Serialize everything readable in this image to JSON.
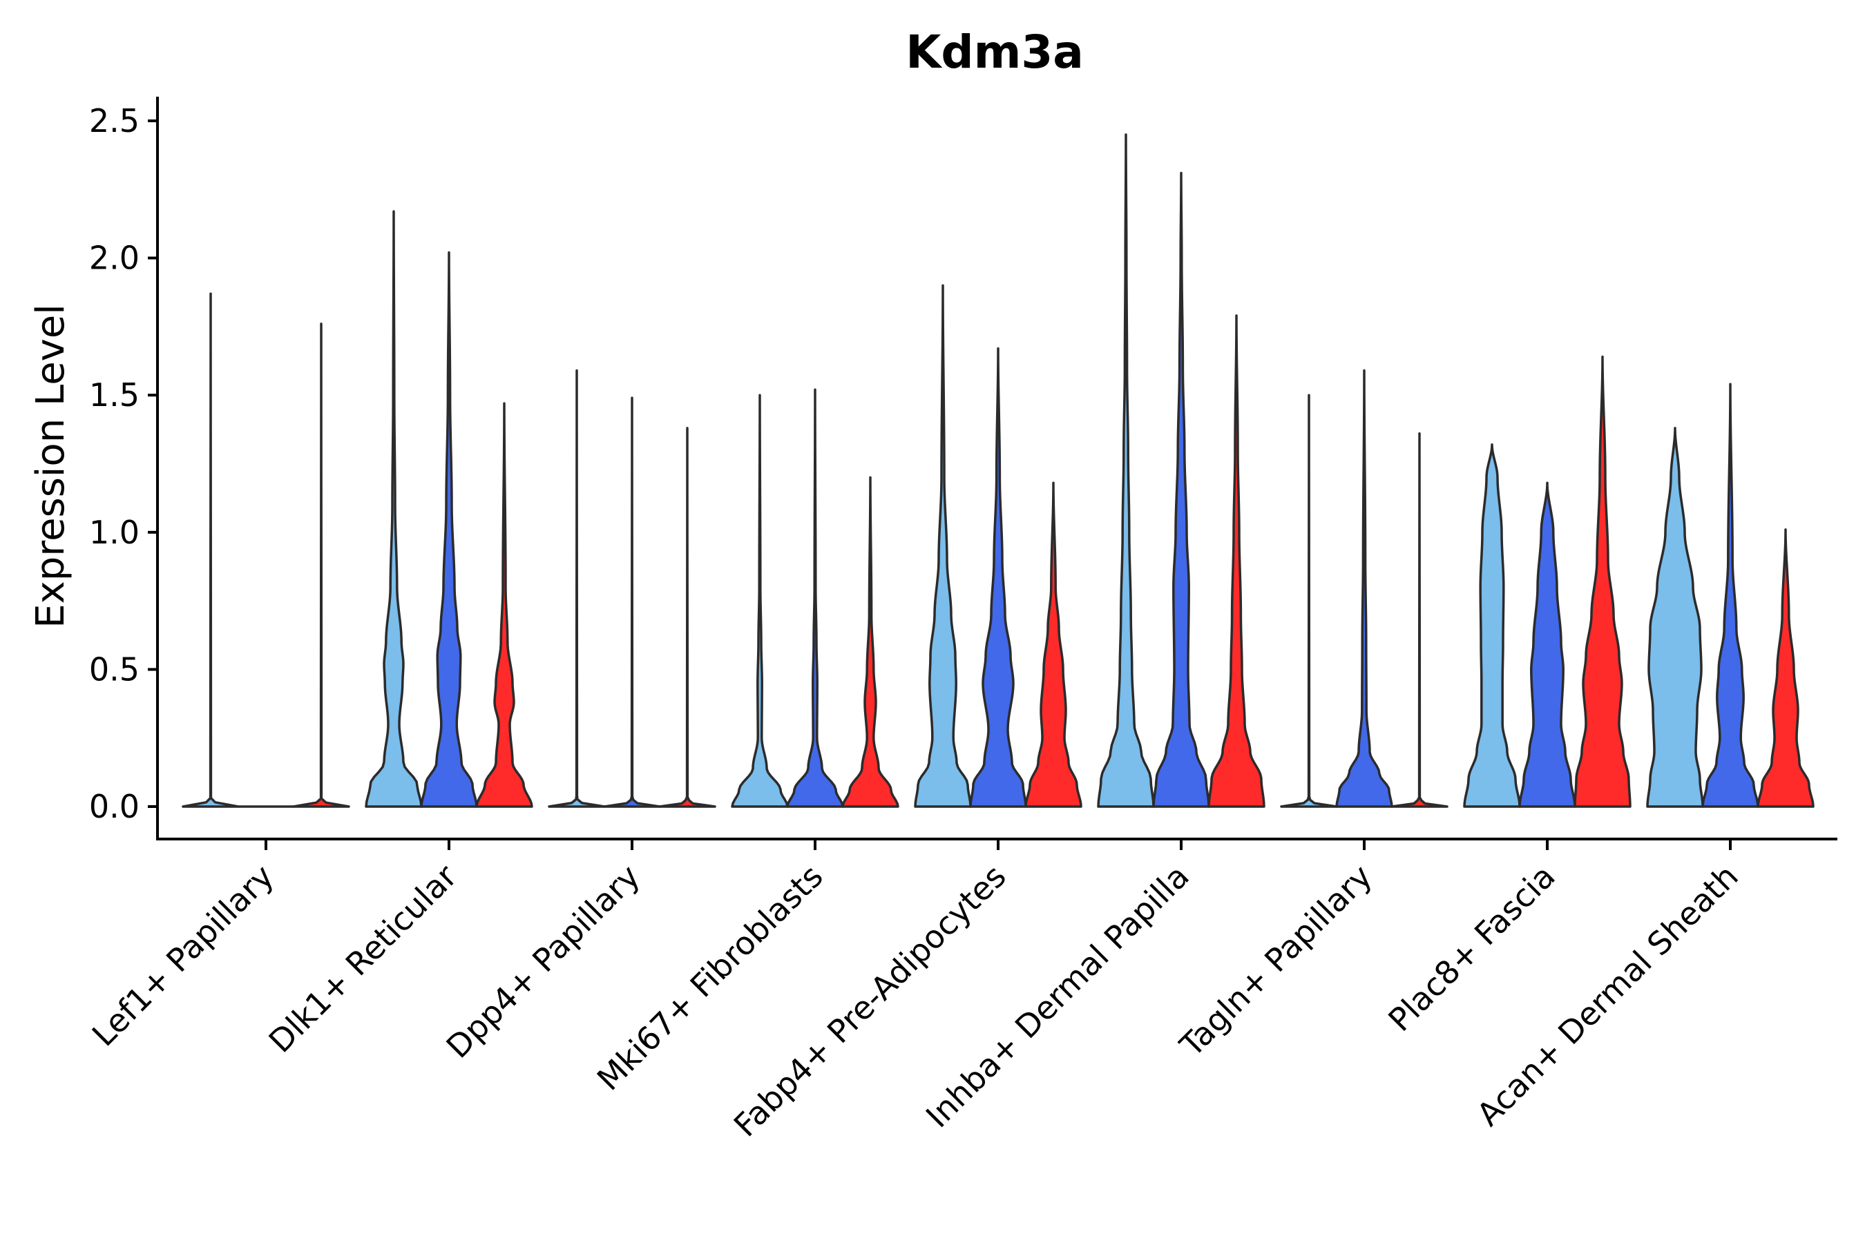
{
  "chart_data": {
    "type": "violin",
    "title": "Kdm3a",
    "xlabel": "",
    "ylabel": "Expression Level",
    "ylim": [
      -0.12,
      2.58
    ],
    "yticks": [
      "0.0",
      "0.5",
      "1.0",
      "1.5",
      "2.0",
      "2.5"
    ],
    "ytick_values": [
      0,
      0.5,
      1.0,
      1.5,
      2.0,
      2.5
    ],
    "grid": false,
    "legend": "none",
    "series_colors": [
      "#7BBDEB",
      "#4169E9",
      "#FF2A2A"
    ],
    "categories": [
      "Lef1+ Papillary",
      "Dlk1+ Reticular",
      "Dpp4+ Papillary",
      "Mki67+ Fibroblasts",
      "Fabp4+ Pre-Adipocytes",
      "Inhba+ Dermal Papilla",
      "Tagln+ Papillary",
      "Plac8+ Fascia",
      "Acan+ Dermal Sheath"
    ],
    "violins": [
      [
        {
          "max": 1.87,
          "profile": [
            [
              0,
              1.0
            ],
            [
              0.01,
              0.2
            ],
            [
              0.03,
              0.01
            ],
            [
              1.87,
              0.0
            ]
          ]
        },
        {
          "max": 0,
          "profile": [
            [
              0,
              0.0
            ]
          ]
        },
        {
          "max": 1.76,
          "profile": [
            [
              0,
              1.0
            ],
            [
              0.01,
              0.2
            ],
            [
              0.03,
              0.01
            ],
            [
              1.76,
              0.0
            ]
          ]
        }
      ],
      [
        {
          "max": 2.17,
          "profile": [
            [
              0,
              1.0
            ],
            [
              0.08,
              0.85
            ],
            [
              0.16,
              0.35
            ],
            [
              0.3,
              0.2
            ],
            [
              0.45,
              0.32
            ],
            [
              0.52,
              0.35
            ],
            [
              0.6,
              0.28
            ],
            [
              0.8,
              0.12
            ],
            [
              1.1,
              0.05
            ],
            [
              1.5,
              0.02
            ],
            [
              2.17,
              0.0
            ]
          ]
        },
        {
          "max": 2.02,
          "profile": [
            [
              0,
              1.0
            ],
            [
              0.08,
              0.85
            ],
            [
              0.16,
              0.45
            ],
            [
              0.3,
              0.28
            ],
            [
              0.45,
              0.4
            ],
            [
              0.55,
              0.42
            ],
            [
              0.65,
              0.3
            ],
            [
              0.8,
              0.2
            ],
            [
              1.1,
              0.1
            ],
            [
              1.5,
              0.04
            ],
            [
              2.02,
              0.0
            ]
          ]
        },
        {
          "max": 1.47,
          "profile": [
            [
              0,
              1.0
            ],
            [
              0.08,
              0.7
            ],
            [
              0.16,
              0.3
            ],
            [
              0.3,
              0.2
            ],
            [
              0.38,
              0.35
            ],
            [
              0.45,
              0.3
            ],
            [
              0.6,
              0.12
            ],
            [
              0.8,
              0.05
            ],
            [
              1.47,
              0.0
            ]
          ]
        }
      ],
      [
        {
          "max": 1.59,
          "profile": [
            [
              0,
              1.0
            ],
            [
              0.01,
              0.2
            ],
            [
              0.03,
              0.01
            ],
            [
              1.59,
              0.0
            ]
          ]
        },
        {
          "max": 1.49,
          "profile": [
            [
              0,
              1.0
            ],
            [
              0.01,
              0.2
            ],
            [
              0.03,
              0.01
            ],
            [
              1.49,
              0.0
            ]
          ]
        },
        {
          "max": 1.38,
          "profile": [
            [
              0,
              1.0
            ],
            [
              0.01,
              0.2
            ],
            [
              0.03,
              0.01
            ],
            [
              1.38,
              0.0
            ]
          ]
        }
      ],
      [
        {
          "max": 1.5,
          "profile": [
            [
              0,
              1.0
            ],
            [
              0.06,
              0.75
            ],
            [
              0.14,
              0.25
            ],
            [
              0.25,
              0.07
            ],
            [
              0.45,
              0.08
            ],
            [
              0.6,
              0.05
            ],
            [
              0.8,
              0.02
            ],
            [
              1.5,
              0.0
            ]
          ]
        },
        {
          "max": 1.52,
          "profile": [
            [
              0,
              1.0
            ],
            [
              0.06,
              0.75
            ],
            [
              0.14,
              0.25
            ],
            [
              0.25,
              0.07
            ],
            [
              0.45,
              0.08
            ],
            [
              0.6,
              0.05
            ],
            [
              0.8,
              0.02
            ],
            [
              1.52,
              0.0
            ]
          ]
        },
        {
          "max": 1.2,
          "profile": [
            [
              0,
              1.0
            ],
            [
              0.06,
              0.75
            ],
            [
              0.14,
              0.3
            ],
            [
              0.25,
              0.12
            ],
            [
              0.38,
              0.2
            ],
            [
              0.5,
              0.12
            ],
            [
              0.7,
              0.04
            ],
            [
              1.2,
              0.0
            ]
          ]
        }
      ],
      [
        {
          "max": 1.9,
          "profile": [
            [
              0,
              1.0
            ],
            [
              0.08,
              0.9
            ],
            [
              0.16,
              0.5
            ],
            [
              0.25,
              0.38
            ],
            [
              0.45,
              0.48
            ],
            [
              0.55,
              0.45
            ],
            [
              0.7,
              0.3
            ],
            [
              0.9,
              0.15
            ],
            [
              1.2,
              0.05
            ],
            [
              1.9,
              0.0
            ]
          ]
        },
        {
          "max": 1.67,
          "profile": [
            [
              0,
              1.0
            ],
            [
              0.08,
              0.9
            ],
            [
              0.16,
              0.5
            ],
            [
              0.28,
              0.35
            ],
            [
              0.45,
              0.55
            ],
            [
              0.55,
              0.45
            ],
            [
              0.7,
              0.25
            ],
            [
              0.9,
              0.15
            ],
            [
              1.2,
              0.06
            ],
            [
              1.67,
              0.0
            ]
          ]
        },
        {
          "max": 1.18,
          "profile": [
            [
              0,
              1.0
            ],
            [
              0.08,
              0.85
            ],
            [
              0.16,
              0.55
            ],
            [
              0.25,
              0.4
            ],
            [
              0.35,
              0.45
            ],
            [
              0.5,
              0.35
            ],
            [
              0.65,
              0.2
            ],
            [
              0.8,
              0.08
            ],
            [
              1.18,
              0.0
            ]
          ]
        }
      ],
      [
        {
          "max": 2.45,
          "profile": [
            [
              0,
              1.0
            ],
            [
              0.1,
              0.9
            ],
            [
              0.2,
              0.55
            ],
            [
              0.3,
              0.3
            ],
            [
              0.5,
              0.22
            ],
            [
              0.7,
              0.18
            ],
            [
              1.0,
              0.12
            ],
            [
              1.3,
              0.08
            ],
            [
              1.6,
              0.04
            ],
            [
              2.0,
              0.02
            ],
            [
              2.45,
              0.0
            ]
          ]
        },
        {
          "max": 2.31,
          "profile": [
            [
              0,
              1.0
            ],
            [
              0.1,
              0.9
            ],
            [
              0.2,
              0.55
            ],
            [
              0.3,
              0.3
            ],
            [
              0.5,
              0.25
            ],
            [
              0.8,
              0.28
            ],
            [
              1.0,
              0.2
            ],
            [
              1.3,
              0.12
            ],
            [
              1.6,
              0.06
            ],
            [
              2.0,
              0.02
            ],
            [
              2.31,
              0.0
            ]
          ]
        },
        {
          "max": 1.79,
          "profile": [
            [
              0,
              1.0
            ],
            [
              0.1,
              0.9
            ],
            [
              0.2,
              0.5
            ],
            [
              0.3,
              0.3
            ],
            [
              0.5,
              0.2
            ],
            [
              0.7,
              0.16
            ],
            [
              1.0,
              0.1
            ],
            [
              1.3,
              0.05
            ],
            [
              1.79,
              0.0
            ]
          ]
        }
      ],
      [
        {
          "max": 1.5,
          "profile": [
            [
              0,
              1.0
            ],
            [
              0.01,
              0.2
            ],
            [
              0.03,
              0.01
            ],
            [
              1.5,
              0.0
            ]
          ]
        },
        {
          "max": 1.59,
          "profile": [
            [
              0,
              1.0
            ],
            [
              0.06,
              0.9
            ],
            [
              0.12,
              0.55
            ],
            [
              0.2,
              0.2
            ],
            [
              0.35,
              0.08
            ],
            [
              0.6,
              0.07
            ],
            [
              0.9,
              0.04
            ],
            [
              1.59,
              0.0
            ]
          ]
        },
        {
          "max": 1.36,
          "profile": [
            [
              0,
              1.0
            ],
            [
              0.01,
              0.2
            ],
            [
              0.03,
              0.01
            ],
            [
              1.36,
              0.0
            ]
          ]
        }
      ],
      [
        {
          "max": 1.32,
          "profile": [
            [
              0,
              1.0
            ],
            [
              0.1,
              0.85
            ],
            [
              0.2,
              0.55
            ],
            [
              0.3,
              0.38
            ],
            [
              0.45,
              0.38
            ],
            [
              0.6,
              0.4
            ],
            [
              0.8,
              0.42
            ],
            [
              1.0,
              0.35
            ],
            [
              1.2,
              0.2
            ],
            [
              1.32,
              0.0
            ]
          ]
        },
        {
          "max": 1.18,
          "profile": [
            [
              0,
              1.0
            ],
            [
              0.1,
              0.85
            ],
            [
              0.2,
              0.65
            ],
            [
              0.3,
              0.5
            ],
            [
              0.5,
              0.58
            ],
            [
              0.6,
              0.5
            ],
            [
              0.8,
              0.35
            ],
            [
              1.0,
              0.22
            ],
            [
              1.18,
              0.0
            ]
          ]
        },
        {
          "max": 1.64,
          "profile": [
            [
              0,
              1.0
            ],
            [
              0.1,
              0.95
            ],
            [
              0.2,
              0.75
            ],
            [
              0.3,
              0.6
            ],
            [
              0.45,
              0.7
            ],
            [
              0.55,
              0.6
            ],
            [
              0.7,
              0.4
            ],
            [
              0.9,
              0.2
            ],
            [
              1.2,
              0.1
            ],
            [
              1.64,
              0.0
            ]
          ]
        }
      ],
      [
        {
          "max": 1.38,
          "profile": [
            [
              0,
              1.0
            ],
            [
              0.1,
              0.9
            ],
            [
              0.2,
              0.75
            ],
            [
              0.35,
              0.8
            ],
            [
              0.5,
              0.95
            ],
            [
              0.65,
              0.9
            ],
            [
              0.8,
              0.65
            ],
            [
              1.0,
              0.35
            ],
            [
              1.2,
              0.15
            ],
            [
              1.38,
              0.0
            ]
          ]
        },
        {
          "max": 1.54,
          "profile": [
            [
              0,
              1.0
            ],
            [
              0.08,
              0.85
            ],
            [
              0.16,
              0.5
            ],
            [
              0.25,
              0.38
            ],
            [
              0.4,
              0.48
            ],
            [
              0.5,
              0.42
            ],
            [
              0.65,
              0.22
            ],
            [
              0.9,
              0.08
            ],
            [
              1.54,
              0.0
            ]
          ]
        },
        {
          "max": 1.01,
          "profile": [
            [
              0,
              1.0
            ],
            [
              0.08,
              0.85
            ],
            [
              0.16,
              0.5
            ],
            [
              0.25,
              0.4
            ],
            [
              0.35,
              0.45
            ],
            [
              0.5,
              0.3
            ],
            [
              0.7,
              0.12
            ],
            [
              1.01,
              0.0
            ]
          ]
        }
      ]
    ]
  }
}
